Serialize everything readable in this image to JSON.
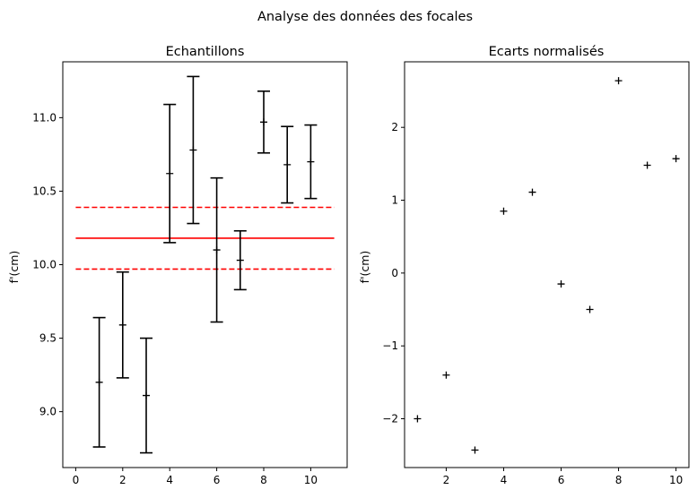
{
  "suptitle": "Analyse des données des focales",
  "chart_data": [
    {
      "type": "errorbar",
      "title": "Echantillons",
      "xlabel": "",
      "ylabel": "f'(cm)",
      "xlim": [
        -0.55,
        11.55
      ],
      "ylim": [
        8.62,
        11.38
      ],
      "xticks": [
        0,
        2,
        4,
        6,
        8,
        10
      ],
      "yticks": [
        9.0,
        9.5,
        10.0,
        10.5,
        11.0
      ],
      "ytick_labels": [
        "9.0",
        "9.5",
        "10.0",
        "10.5",
        "11.0"
      ],
      "series": [
        {
          "x": [
            1,
            2,
            3,
            4,
            5,
            6,
            7,
            8,
            9,
            10
          ],
          "y": [
            9.2,
            9.59,
            9.11,
            10.62,
            10.78,
            10.1,
            10.03,
            10.97,
            10.68,
            10.7
          ],
          "yerr": [
            0.44,
            0.36,
            0.39,
            0.47,
            0.5,
            0.49,
            0.2,
            0.21,
            0.26,
            0.25
          ],
          "color": "#000000",
          "marker": "+"
        }
      ],
      "hlines": [
        {
          "y": 10.18,
          "style": "solid",
          "color": "#ff0000",
          "xrange": [
            0,
            11
          ]
        },
        {
          "y": 10.39,
          "style": "dashed",
          "color": "#ff0000",
          "xrange": [
            0,
            11
          ]
        },
        {
          "y": 9.97,
          "style": "dashed",
          "color": "#ff0000",
          "xrange": [
            0,
            11
          ]
        }
      ]
    },
    {
      "type": "scatter",
      "title": "Ecarts normalisés",
      "xlabel": "",
      "ylabel": "f'(cm)",
      "xlim": [
        0.55,
        10.45
      ],
      "ylim": [
        -2.67,
        2.9
      ],
      "xticks": [
        2,
        4,
        6,
        8,
        10
      ],
      "yticks": [
        -2,
        -1,
        0,
        1,
        2
      ],
      "ytick_labels": [
        "−2",
        "−1",
        "0",
        "1",
        "2"
      ],
      "series": [
        {
          "x": [
            1,
            2,
            3,
            4,
            5,
            6,
            7,
            8,
            9,
            10
          ],
          "y": [
            -2.0,
            -1.4,
            -2.43,
            0.85,
            1.11,
            -0.15,
            -0.5,
            2.64,
            1.48,
            1.57
          ],
          "color": "#000000",
          "marker": "+"
        }
      ]
    }
  ]
}
